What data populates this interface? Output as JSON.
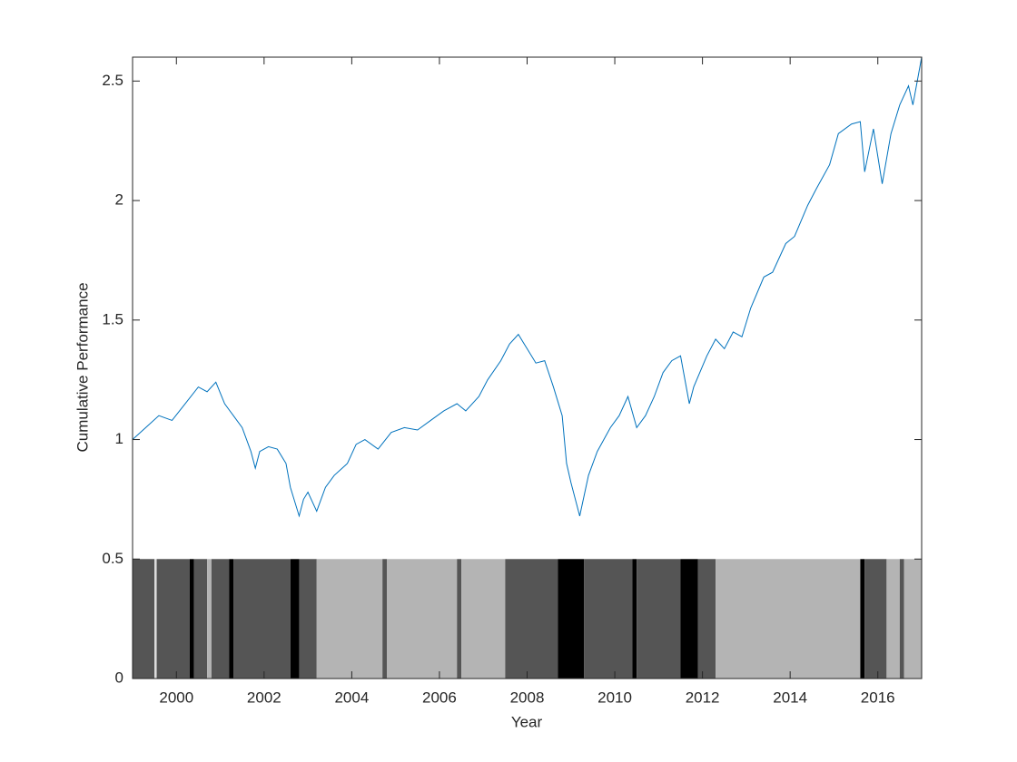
{
  "chart_data": {
    "type": "line",
    "xlabel": "Year",
    "ylabel": "Cumulative Performance",
    "xlim": [
      1999,
      2017
    ],
    "ylim": [
      0,
      2.6
    ],
    "xticks": [
      2000,
      2002,
      2004,
      2006,
      2008,
      2010,
      2012,
      2014,
      2016
    ],
    "yticks": [
      0,
      0.5,
      1,
      1.5,
      2,
      2.5
    ],
    "grid": false,
    "series": [
      {
        "color": "#0072bd",
        "x": [
          1999.0,
          1999.3,
          1999.6,
          1999.9,
          2000.2,
          2000.5,
          2000.7,
          2000.9,
          2001.1,
          2001.3,
          2001.5,
          2001.7,
          2001.8,
          2001.9,
          2002.1,
          2002.3,
          2002.5,
          2002.6,
          2002.8,
          2002.9,
          2003.0,
          2003.2,
          2003.4,
          2003.6,
          2003.9,
          2004.1,
          2004.3,
          2004.6,
          2004.9,
          2005.2,
          2005.5,
          2005.8,
          2006.1,
          2006.4,
          2006.6,
          2006.9,
          2007.1,
          2007.4,
          2007.6,
          2007.8,
          2008.0,
          2008.2,
          2008.4,
          2008.6,
          2008.8,
          2008.9,
          2009.0,
          2009.2,
          2009.4,
          2009.6,
          2009.9,
          2010.1,
          2010.3,
          2010.5,
          2010.7,
          2010.9,
          2011.1,
          2011.3,
          2011.5,
          2011.7,
          2011.8,
          2012.1,
          2012.3,
          2012.5,
          2012.7,
          2012.9,
          2013.1,
          2013.4,
          2013.6,
          2013.9,
          2014.1,
          2014.4,
          2014.6,
          2014.9,
          2015.1,
          2015.4,
          2015.6,
          2015.7,
          2015.9,
          2016.1,
          2016.3,
          2016.5,
          2016.7,
          2016.8,
          2016.9,
          2017.0
        ],
        "values": [
          1.0,
          1.05,
          1.1,
          1.08,
          1.15,
          1.22,
          1.2,
          1.24,
          1.15,
          1.1,
          1.05,
          0.95,
          0.88,
          0.95,
          0.97,
          0.96,
          0.9,
          0.8,
          0.68,
          0.75,
          0.78,
          0.7,
          0.8,
          0.85,
          0.9,
          0.98,
          1.0,
          0.96,
          1.03,
          1.05,
          1.04,
          1.08,
          1.12,
          1.15,
          1.12,
          1.18,
          1.25,
          1.33,
          1.4,
          1.44,
          1.38,
          1.32,
          1.33,
          1.22,
          1.1,
          0.9,
          0.82,
          0.68,
          0.85,
          0.95,
          1.05,
          1.1,
          1.18,
          1.05,
          1.1,
          1.18,
          1.28,
          1.33,
          1.35,
          1.15,
          1.22,
          1.35,
          1.42,
          1.38,
          1.45,
          1.43,
          1.55,
          1.68,
          1.7,
          1.82,
          1.85,
          1.98,
          2.05,
          2.15,
          2.28,
          2.32,
          2.33,
          2.12,
          2.3,
          2.07,
          2.28,
          2.4,
          2.48,
          2.4,
          2.5,
          2.6
        ]
      }
    ],
    "regime_bands": {
      "height": 0.5,
      "edges": [
        1999.0,
        1999.5,
        1999.55,
        2000.3,
        2000.4,
        2000.7,
        2000.8,
        2001.2,
        2001.3,
        2002.6,
        2002.8,
        2003.2,
        2004.7,
        2004.8,
        2006.4,
        2006.5,
        2007.5,
        2008.7,
        2009.3,
        2010.4,
        2010.5,
        2011.5,
        2011.9,
        2012.3,
        2015.6,
        2015.7,
        2016.2,
        2016.5,
        2016.6,
        2017.0
      ],
      "colors": [
        "#555555",
        "#dddddd",
        "#555555",
        "#000000",
        "#555555",
        "#b4b4b4",
        "#555555",
        "#000000",
        "#555555",
        "#000000",
        "#555555",
        "#b4b4b4",
        "#555555",
        "#b4b4b4",
        "#555555",
        "#b4b4b4",
        "#555555",
        "#000000",
        "#555555",
        "#000000",
        "#555555",
        "#000000",
        "#555555",
        "#b4b4b4",
        "#000000",
        "#555555",
        "#b4b4b4",
        "#555555",
        "#b4b4b4"
      ]
    }
  }
}
